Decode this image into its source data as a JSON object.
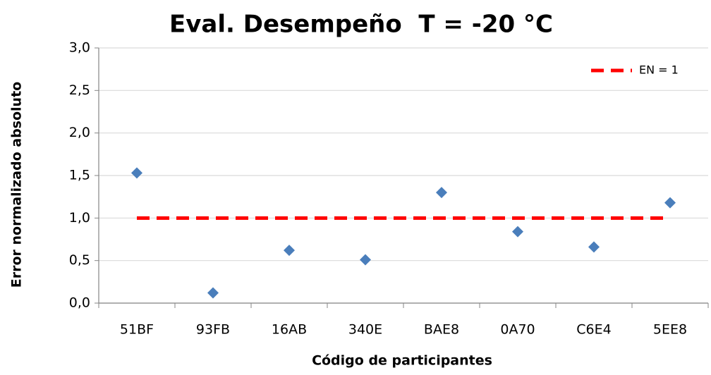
{
  "chart_data": {
    "type": "scatter",
    "title": "Eval. Desempeño  T = -20 °C",
    "x_label": "Código de participantes",
    "y_label": "Error normalizado absoluto",
    "categories": [
      "51BF",
      "93FB",
      "16AB",
      "340E",
      "BAE8",
      "0A70",
      "C6E4",
      "5EE8"
    ],
    "values": [
      1.53,
      0.12,
      0.62,
      0.51,
      1.3,
      0.84,
      0.66,
      1.18
    ],
    "color": "#4a7ebb",
    "series": [
      {
        "name": "EN = 1",
        "color": "#ff0000",
        "values": [
          1,
          1,
          1,
          1,
          1,
          1,
          1,
          1
        ],
        "line_style": "dashed"
      }
    ],
    "ylim": [
      0,
      3
    ],
    "yticks": [
      {
        "value": 0,
        "label": "0,0"
      },
      {
        "value": 0.5,
        "label": "0,5"
      },
      {
        "value": 1,
        "label": "1,0"
      },
      {
        "value": 1.5,
        "label": "1,5"
      },
      {
        "value": 2,
        "label": "2,0"
      },
      {
        "value": 2.5,
        "label": "2,5"
      },
      {
        "value": 3,
        "label": "3,0"
      }
    ],
    "grid": true,
    "legend": "top-right"
  }
}
